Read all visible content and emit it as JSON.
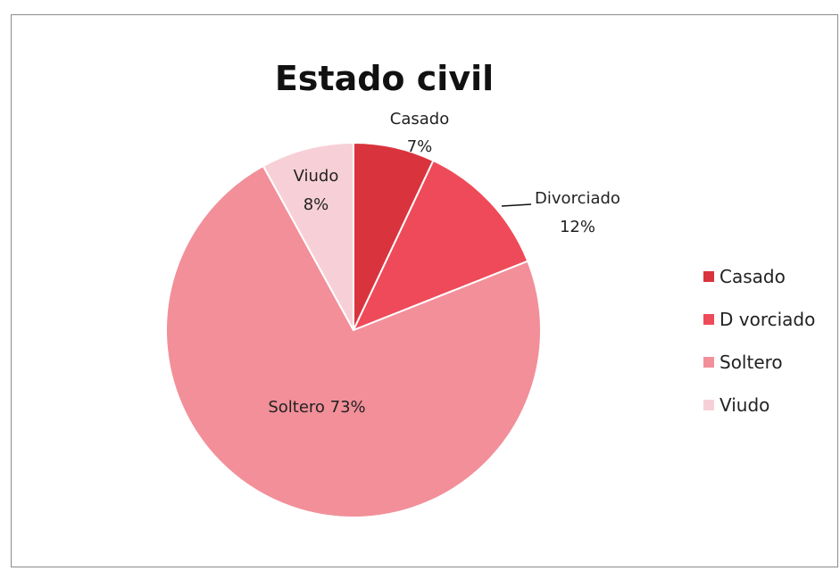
{
  "chart_data": {
    "type": "pie",
    "title": "Estado civil",
    "categories": [
      "Casado",
      "Divorciado",
      "Soltero",
      "Viudo"
    ],
    "values": [
      7,
      12,
      73,
      8
    ],
    "unit": "%",
    "colors": [
      "#d9343d",
      "#ef4a59",
      "#f28f99",
      "#f7d0d7"
    ],
    "slice_labels": [
      {
        "name": "Casado",
        "pct": "7%"
      },
      {
        "name": "Divorciado",
        "pct": "12%"
      },
      {
        "name": "Soltero",
        "pct": "73%"
      },
      {
        "name": "Viudo",
        "pct": "8%"
      }
    ],
    "legend": {
      "position": "right",
      "items": [
        "Casado",
        "D vorciado",
        "Soltero",
        "Viudo"
      ]
    }
  }
}
